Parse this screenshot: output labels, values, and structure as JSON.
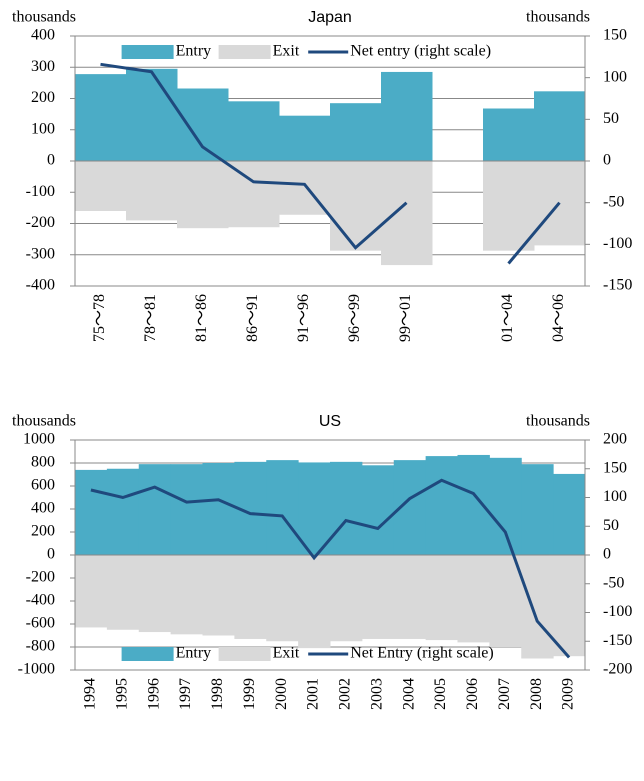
{
  "chart_data": [
    {
      "type": "bar",
      "title": "Japan",
      "y_label": "thousands",
      "y2_label": "thousands",
      "categories": [
        "75～78",
        "78～81",
        "81～86",
        "86～91",
        "91～96",
        "96～99",
        "99～01",
        null,
        "01～04",
        "04～06"
      ],
      "series": [
        {
          "name": "Entry",
          "color": "#4bacc6",
          "values": [
            278,
            295,
            232,
            191,
            145,
            185,
            285,
            null,
            168,
            223
          ]
        },
        {
          "name": "Exit",
          "color": "#d9d9d9",
          "values": [
            -160,
            -190,
            -215,
            -212,
            -172,
            -287,
            -333,
            null,
            -287,
            -270
          ]
        },
        {
          "name": "Net entry (right scale)",
          "color": "#1f497d",
          "axis": "y2",
          "values": [
            116,
            107,
            17,
            -25,
            -28,
            -104,
            -50,
            null,
            -123,
            -50
          ]
        }
      ],
      "ylim": [
        -400,
        400
      ],
      "yticks": [
        -400,
        -300,
        -200,
        -100,
        0,
        100,
        200,
        300,
        400
      ],
      "y2lim": [
        -150,
        150
      ],
      "y2ticks": [
        -150,
        -100,
        -50,
        0,
        50,
        100,
        150
      ],
      "grid": true,
      "legend": "upper center"
    },
    {
      "type": "bar",
      "title": "US",
      "y_label": "thousands",
      "y2_label": "thousands",
      "categories": [
        "1994",
        "1995",
        "1996",
        "1997",
        "1998",
        "1999",
        "2000",
        "2001",
        "2002",
        "2003",
        "2004",
        "2005",
        "2006",
        "2007",
        "2008",
        "2009"
      ],
      "series": [
        {
          "name": "Entry",
          "color": "#4bacc6",
          "values": [
            740,
            750,
            790,
            790,
            800,
            810,
            825,
            805,
            810,
            780,
            825,
            860,
            870,
            845,
            790,
            705
          ]
        },
        {
          "name": "Exit",
          "color": "#d9d9d9",
          "values": [
            -630,
            -650,
            -670,
            -690,
            -700,
            -730,
            -750,
            -810,
            -750,
            -730,
            -730,
            -740,
            -760,
            -800,
            -900,
            -880
          ]
        },
        {
          "name": "Net Entry (right scale)",
          "color": "#1f497d",
          "axis": "y2",
          "values": [
            113,
            100,
            118,
            92,
            96,
            72,
            68,
            -5,
            60,
            46,
            98,
            130,
            107,
            40,
            -115,
            -178
          ]
        }
      ],
      "ylim": [
        -1000,
        1000
      ],
      "yticks": [
        -1000,
        -800,
        -600,
        -400,
        -200,
        0,
        200,
        400,
        600,
        800,
        1000
      ],
      "y2lim": [
        -200,
        200
      ],
      "y2ticks": [
        -200,
        -150,
        -100,
        -50,
        0,
        50,
        100,
        150,
        200
      ],
      "grid": true,
      "legend": "lower center"
    }
  ]
}
